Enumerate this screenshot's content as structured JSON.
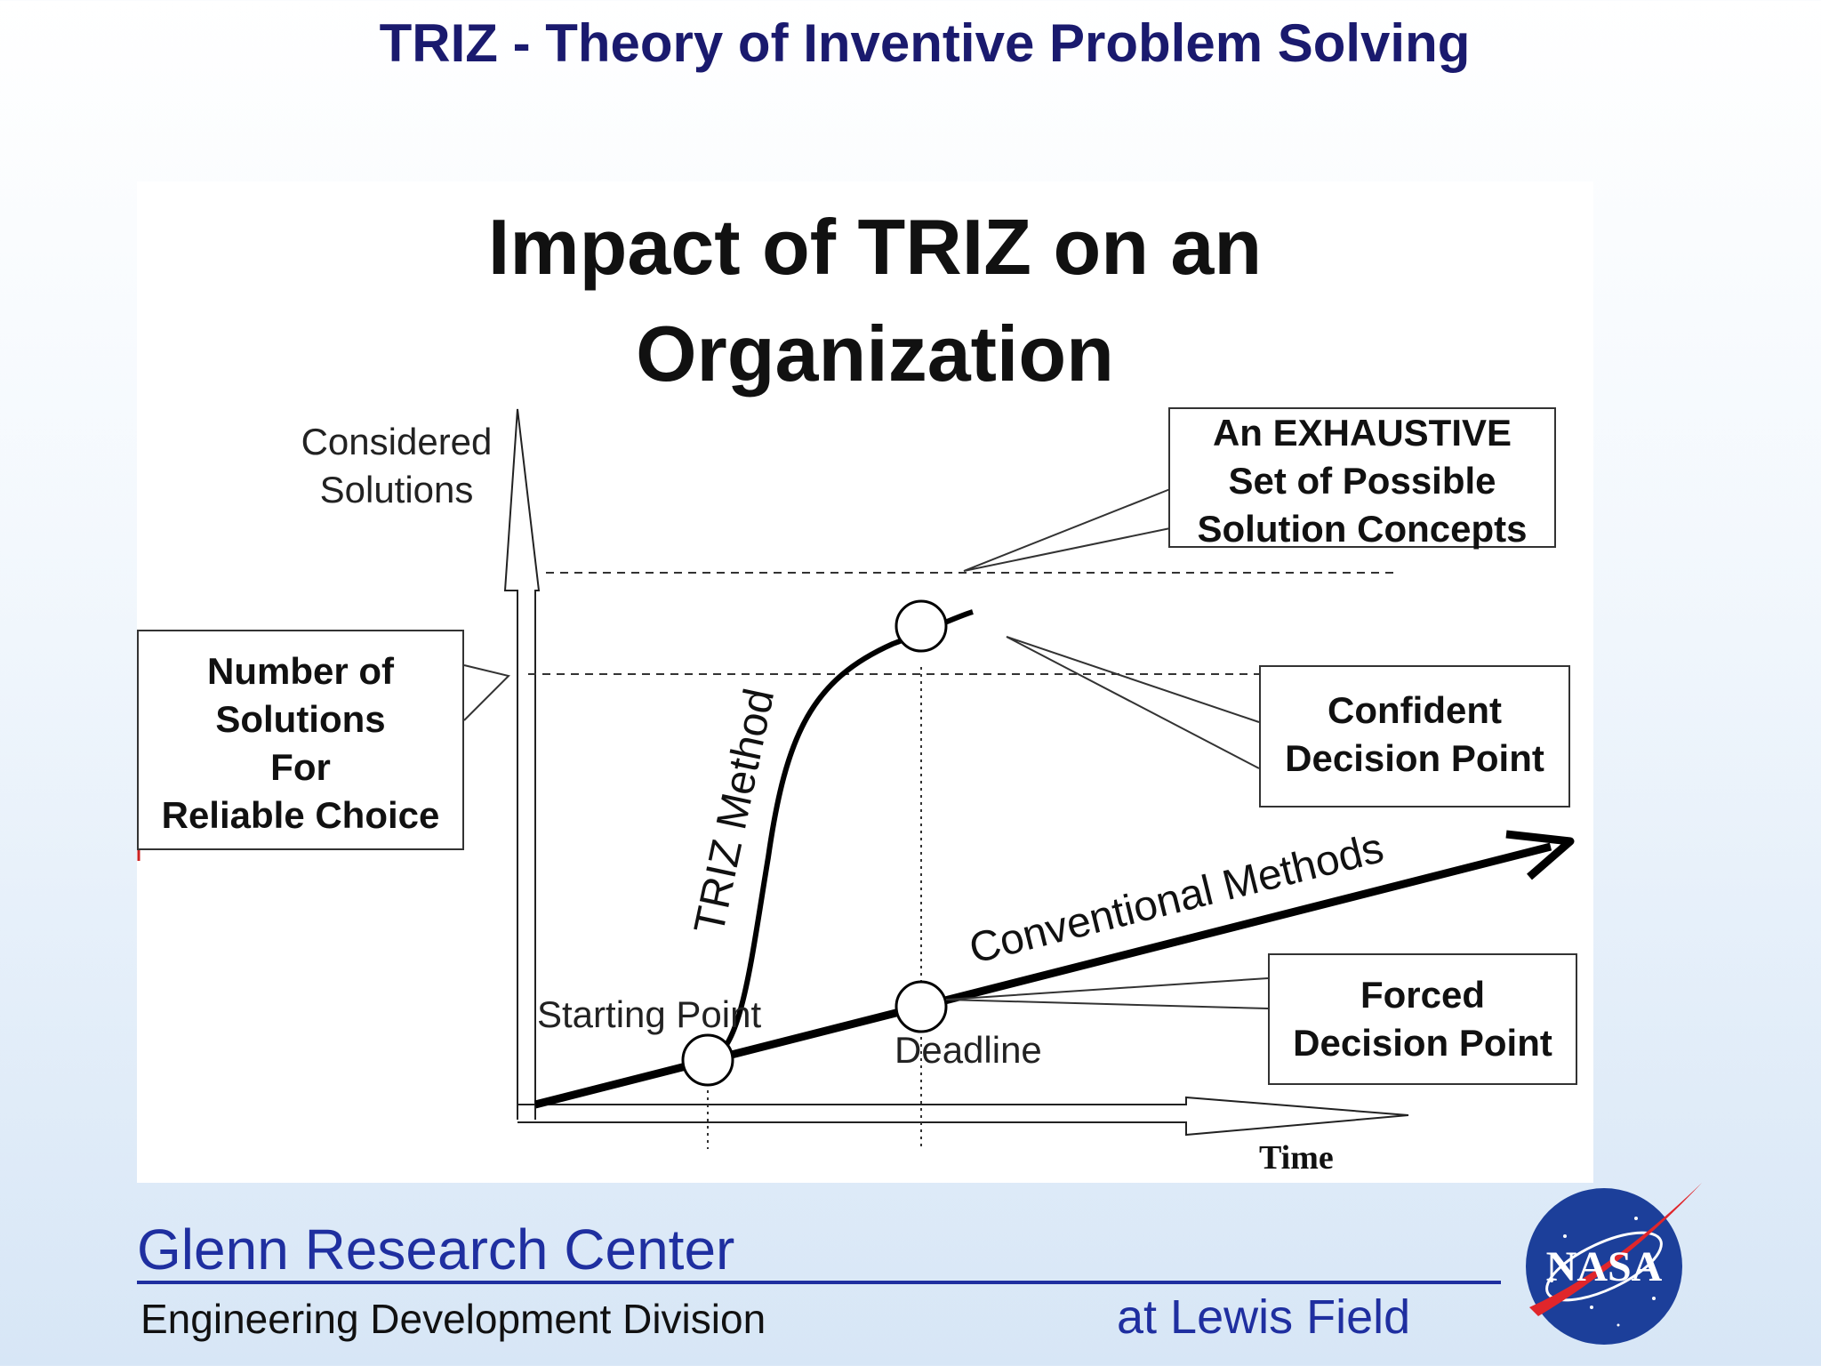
{
  "slide": {
    "title": "TRIZ - Theory of Inventive Problem Solving"
  },
  "figure": {
    "title_line1": "Impact of TRIZ on an",
    "title_line2": "Organization",
    "y_axis_label_line1": "Considered",
    "y_axis_label_line2": "Solutions",
    "x_axis_label": "Time",
    "callouts": {
      "exhaustive": [
        "An EXHAUSTIVE",
        "Set of Possible",
        "Solution Concepts"
      ],
      "reliable": [
        "Number of",
        "Solutions",
        "For",
        "Reliable Choice"
      ],
      "confident": [
        "Confident",
        "Decision Point"
      ],
      "forced": [
        "Forced",
        "Decision Point"
      ]
    },
    "point_labels": {
      "start": "Starting Point",
      "deadline": "Deadline"
    },
    "curve_labels": {
      "triz": "TRIZ Method",
      "conventional": "Conventional Methods"
    }
  },
  "footer": {
    "center": "Glenn Research Center",
    "division": "Engineering Development Division",
    "location": "at Lewis Field",
    "logo_text": "NASA"
  }
}
